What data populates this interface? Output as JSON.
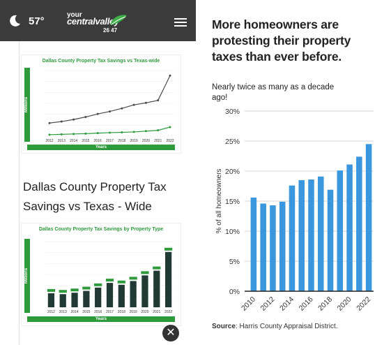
{
  "topbar": {
    "temperature": "57°",
    "logo_line1": "your",
    "logo_line2": "centralvalley",
    "logo_suffix": ".com",
    "logo_channels": "26 47",
    "weather_icon": "moon-icon",
    "menu_icon": "hamburger-icon"
  },
  "thumbnail1": {
    "title": "Dallas County Property Tax Savings vs Texas-wide",
    "ylabel": "Millions",
    "xlabel": "Years",
    "years": [
      "2012",
      "2013",
      "2014",
      "2015",
      "2016",
      "2017",
      "2018",
      "2019",
      "2020",
      "2021",
      "2022"
    ],
    "texas_values": [
      1.3,
      1.45,
      1.65,
      1.9,
      2.2,
      2.45,
      2.75,
      3.1,
      3.3,
      3.55,
      6.0
    ],
    "dallas_values": [
      0.15,
      0.18,
      0.22,
      0.25,
      0.3,
      0.35,
      0.38,
      0.42,
      0.5,
      0.58,
      0.9
    ],
    "texas_color": "#4a4a4a",
    "dallas_color": "#2e9a3c"
  },
  "article": {
    "title": "Dallas County Property Tax Savings vs Texas - Wide"
  },
  "thumbnail2": {
    "title": "Dallas County Property Tax Savings by Property Type",
    "ylabel": "Millions",
    "xlabel": "Years",
    "years": [
      "2012",
      "2013",
      "2014",
      "2015",
      "2016",
      "2017",
      "2018",
      "2019",
      "2020",
      "2021",
      "2022"
    ],
    "values": [
      300,
      280,
      310,
      350,
      420,
      520,
      480,
      560,
      680,
      780,
      1180
    ],
    "bar_color": "#213a33",
    "label_color": "#2e9a3c"
  },
  "close_label": "✕",
  "chart_data": {
    "type": "bar",
    "title": "More homeowners are protesting their property taxes than ever before.",
    "subtitle": "Nearly twice as many as a decade ago!",
    "ylabel": "% of all homeowners",
    "xlabel": "",
    "x": [
      2010,
      2011,
      2012,
      2013,
      2014,
      2015,
      2016,
      2017,
      2018,
      2019,
      2020,
      2021,
      2022
    ],
    "tick_labels": [
      "2010",
      "2012",
      "2014",
      "2016",
      "2018",
      "2020",
      "2022"
    ],
    "values": [
      15.6,
      14.6,
      14.3,
      14.9,
      17.6,
      18.5,
      18.6,
      19.1,
      16.9,
      20.1,
      21.1,
      22.4,
      24.5
    ],
    "ylim": [
      0,
      30
    ],
    "yticks": [
      "0%",
      "5%",
      "10%",
      "15%",
      "20%",
      "25%",
      "30%"
    ],
    "grid": true,
    "bar_color": "#3a97dd",
    "source_label": "Source",
    "source_text": ": Harris County Appraisal District."
  }
}
